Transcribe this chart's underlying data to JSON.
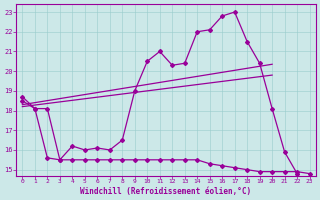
{
  "xlabel": "Windchill (Refroidissement éolien,°C)",
  "background_color": "#cce8e8",
  "line_color": "#990099",
  "xlim": [
    -0.5,
    23.5
  ],
  "ylim": [
    14.7,
    23.4
  ],
  "yticks": [
    15,
    16,
    17,
    18,
    19,
    20,
    21,
    22,
    23
  ],
  "xticks": [
    0,
    1,
    2,
    3,
    4,
    5,
    6,
    7,
    8,
    9,
    10,
    11,
    12,
    13,
    14,
    15,
    16,
    17,
    18,
    19,
    20,
    21,
    22,
    23
  ],
  "series1_x": [
    0,
    1,
    2,
    3,
    4,
    5,
    6,
    7,
    8,
    9,
    10,
    11,
    12,
    13,
    14,
    15,
    16,
    17,
    18,
    19,
    20,
    21,
    22
  ],
  "series1_y": [
    18.7,
    18.1,
    18.1,
    15.5,
    16.2,
    16.0,
    16.1,
    16.0,
    16.5,
    19.0,
    20.5,
    21.0,
    20.3,
    20.4,
    22.0,
    22.1,
    22.8,
    23.0,
    21.5,
    20.4,
    18.1,
    15.9,
    14.8
  ],
  "series2_x": [
    0,
    1,
    2,
    3,
    4,
    5,
    6,
    7,
    8,
    9,
    10,
    11,
    12,
    13,
    14,
    15,
    16,
    17,
    18,
    19,
    20,
    21,
    22,
    23
  ],
  "series2_y": [
    18.5,
    18.1,
    15.6,
    15.5,
    15.5,
    15.5,
    15.5,
    15.5,
    15.5,
    15.5,
    15.5,
    15.5,
    15.5,
    15.5,
    15.5,
    15.3,
    15.2,
    15.1,
    15.0,
    14.9,
    14.9,
    14.9,
    14.9,
    14.8
  ],
  "trend1_x": [
    0,
    20
  ],
  "trend1_y": [
    18.3,
    20.35
  ],
  "trend2_x": [
    0,
    20
  ],
  "trend2_y": [
    18.2,
    19.8
  ]
}
